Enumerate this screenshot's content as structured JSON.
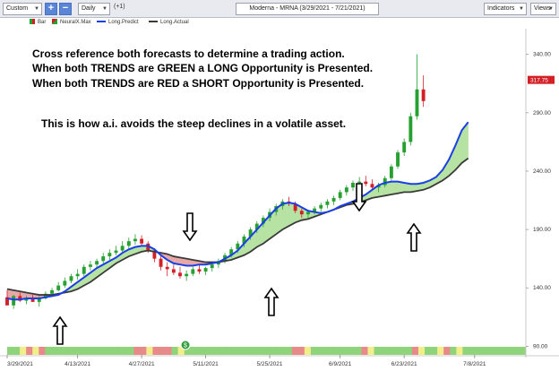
{
  "toolbar": {
    "range_select": "Custom",
    "period_select": "Daily",
    "period_offset": "(+1)",
    "chart_title": "Moderna - MRNA (3/29/2021 - 7/21/2021)",
    "indicators_label": "Indicators",
    "views_label": "Views",
    "add_label": "+",
    "remove_label": "−"
  },
  "legend": {
    "bar": "Bar",
    "neuralx": "NeuralX.Max",
    "long_predict": "Long.Predict",
    "long_actual": "Long.Actual"
  },
  "annotations": {
    "line1": "Cross reference both forecasts to determine a trading action.",
    "line2": "When both TRENDS are GREEN a LONG Opportunity is Presented.",
    "line3": "When both TRENDS are RED a SHORT Opportunity is Presented.",
    "line4": "This is how a.i. avoids the steep declines in a volatile asset."
  },
  "colors": {
    "up": "#27a032",
    "down": "#d32027",
    "predict": "#1a3fe6",
    "actual": "#3a3a3a",
    "fill_green": "#b6e2a3",
    "fill_red": "#e8a8a8"
  },
  "chart_data": {
    "type": "line",
    "y_ticks": [
      90.0,
      140.0,
      190.0,
      240.0,
      290.0,
      340.0
    ],
    "ylim": [
      88,
      362
    ],
    "x_tick_labels": [
      "3/29/2021",
      "4/13/2021",
      "4/27/2021",
      "5/11/2021",
      "5/25/2021",
      "6/9/2021",
      "6/23/2021",
      "7/8/2021"
    ],
    "x_tick_index": [
      0,
      11,
      21,
      31,
      41,
      52,
      62,
      73
    ],
    "n_days": 82,
    "price_label": "317.75",
    "series": [
      {
        "name": "Long.Predict",
        "values": [
          131,
          130,
          130,
          131,
          131,
          131,
          132,
          133,
          134,
          137,
          141,
          145,
          149,
          153,
          157,
          160,
          163,
          166,
          170,
          173,
          175,
          176,
          176,
          173,
          168,
          164,
          161,
          160,
          159,
          159,
          160,
          160,
          161,
          162,
          165,
          168,
          172,
          178,
          184,
          190,
          196,
          202,
          208,
          212,
          213,
          212,
          209,
          206,
          205,
          204,
          205,
          207,
          210,
          212,
          214,
          217,
          220,
          224,
          228,
          230,
          231,
          231,
          230,
          229,
          229,
          230,
          232,
          235,
          241,
          250,
          262,
          275,
          282
        ]
      },
      {
        "name": "Long.Actual",
        "values": [
          139,
          138,
          137,
          136,
          135,
          134,
          134,
          134,
          135,
          136,
          137,
          139,
          142,
          145,
          149,
          153,
          157,
          161,
          164,
          167,
          169,
          171,
          172,
          171,
          170,
          169,
          167,
          166,
          165,
          164,
          163,
          162,
          162,
          162,
          163,
          164,
          166,
          168,
          171,
          175,
          178,
          182,
          186,
          190,
          193,
          196,
          198,
          199,
          201,
          203,
          205,
          207,
          209,
          211,
          212,
          213,
          215,
          217,
          218,
          219,
          220,
          221,
          222,
          222,
          223,
          224,
          226,
          229,
          232,
          236,
          241,
          247,
          251
        ]
      }
    ],
    "candles": [
      [
        132,
        138,
        127,
        125
      ],
      [
        125,
        134,
        122,
        133
      ],
      [
        133,
        136,
        128,
        129
      ],
      [
        129,
        133,
        126,
        131
      ],
      [
        131,
        134,
        128,
        128
      ],
      [
        128,
        133,
        124,
        131
      ],
      [
        131,
        137,
        130,
        135
      ],
      [
        135,
        140,
        133,
        138
      ],
      [
        138,
        145,
        137,
        142
      ],
      [
        142,
        149,
        140,
        146
      ],
      [
        146,
        152,
        144,
        150
      ],
      [
        150,
        156,
        147,
        152
      ],
      [
        152,
        160,
        150,
        158
      ],
      [
        158,
        163,
        155,
        160
      ],
      [
        160,
        165,
        157,
        163
      ],
      [
        163,
        170,
        161,
        167
      ],
      [
        167,
        173,
        164,
        170
      ],
      [
        170,
        176,
        168,
        172
      ],
      [
        172,
        180,
        170,
        176
      ],
      [
        176,
        183,
        173,
        180
      ],
      [
        180,
        186,
        177,
        182
      ],
      [
        182,
        185,
        176,
        178
      ],
      [
        178,
        180,
        170,
        172
      ],
      [
        172,
        174,
        162,
        165
      ],
      [
        165,
        168,
        155,
        158
      ],
      [
        158,
        162,
        150,
        156
      ],
      [
        156,
        160,
        151,
        153
      ],
      [
        153,
        158,
        148,
        150
      ],
      [
        150,
        155,
        146,
        152
      ],
      [
        152,
        158,
        150,
        156
      ],
      [
        156,
        160,
        152,
        154
      ],
      [
        154,
        158,
        151,
        157
      ],
      [
        157,
        162,
        154,
        160
      ],
      [
        160,
        165,
        157,
        163
      ],
      [
        163,
        170,
        161,
        168
      ],
      [
        168,
        175,
        166,
        173
      ],
      [
        173,
        180,
        170,
        178
      ],
      [
        178,
        186,
        175,
        184
      ],
      [
        184,
        192,
        181,
        190
      ],
      [
        190,
        197,
        187,
        195
      ],
      [
        195,
        202,
        192,
        200
      ],
      [
        200,
        208,
        197,
        205
      ],
      [
        205,
        212,
        202,
        210
      ],
      [
        210,
        216,
        207,
        214
      ],
      [
        214,
        218,
        210,
        212
      ],
      [
        212,
        214,
        204,
        206
      ],
      [
        206,
        208,
        200,
        203
      ],
      [
        203,
        207,
        199,
        205
      ],
      [
        205,
        210,
        203,
        208
      ],
      [
        208,
        213,
        205,
        211
      ],
      [
        211,
        216,
        208,
        214
      ],
      [
        214,
        219,
        211,
        217
      ],
      [
        217,
        224,
        215,
        222
      ],
      [
        222,
        228,
        219,
        226
      ],
      [
        226,
        232,
        223,
        230
      ],
      [
        230,
        235,
        226,
        231
      ],
      [
        231,
        236,
        227,
        229
      ],
      [
        229,
        233,
        224,
        226
      ],
      [
        226,
        230,
        222,
        228
      ],
      [
        228,
        236,
        226,
        234
      ],
      [
        234,
        246,
        232,
        244
      ],
      [
        244,
        258,
        242,
        256
      ],
      [
        256,
        268,
        253,
        265
      ],
      [
        265,
        290,
        262,
        287
      ],
      [
        287,
        340,
        284,
        310
      ],
      [
        310,
        322,
        295,
        300
      ]
    ]
  }
}
